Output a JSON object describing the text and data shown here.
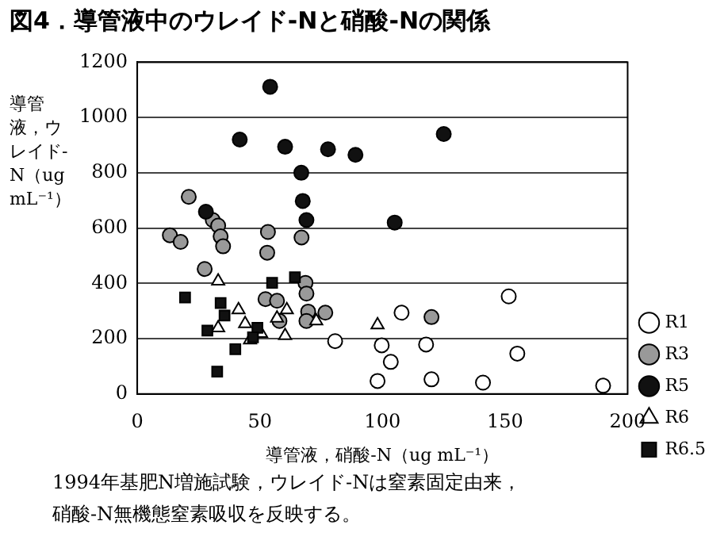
{
  "chart_data": {
    "type": "scatter",
    "title": "図4．導管液中のウレイド-Nと硝酸-Nの関係",
    "xlabel": "導管液，硝酸-N（ug mL⁻¹）",
    "ylabel": "導管液，ウレイド-N（ug mL⁻¹）",
    "annotations": [
      "1994年基肥N増施試験，ウレイド-Nは窒素固定由来，",
      "硝酸-N無機態窒素吸収を反映する。"
    ],
    "xlim": [
      0,
      200
    ],
    "xticks": [
      0,
      50,
      100,
      150,
      200
    ],
    "ylim": [
      0,
      1200
    ],
    "yticks": [
      0,
      200,
      400,
      600,
      800,
      1000,
      1200
    ],
    "grid": "y",
    "legend": "right",
    "series": [
      {
        "name": "R1",
        "color": "#ffffff",
        "marker": "circle",
        "x": [
          80.7,
          107.8,
          151.5,
          99.7,
          117.8,
          103.4,
          155,
          98,
          120,
          141,
          190
        ],
        "values": [
          191,
          294,
          353,
          176,
          179,
          116,
          146,
          47,
          53,
          41,
          30
        ]
      },
      {
        "name": "R3",
        "color": "#999999",
        "marker": "circle",
        "x": [
          21,
          30.8,
          33,
          13.3,
          17.7,
          34,
          35,
          53.3,
          67,
          53,
          27.5,
          68.6,
          69,
          52.3,
          57,
          58,
          69.7,
          76.7,
          69,
          120
        ],
        "values": [
          713,
          629,
          609,
          574,
          550,
          570,
          534,
          586,
          566,
          511,
          452,
          402,
          363,
          343,
          337,
          264,
          298,
          294,
          264,
          278
        ]
      },
      {
        "name": "R5",
        "color": "#111111",
        "marker": "circle",
        "x": [
          54.2,
          41.8,
          60.3,
          77.8,
          89,
          125,
          105,
          66.9,
          67.5,
          69,
          28
        ],
        "values": [
          1111,
          920,
          894,
          885,
          865,
          940,
          620,
          800,
          698,
          629,
          659
        ]
      },
      {
        "name": "R6",
        "color": "#ffffff",
        "marker": "triangle",
        "x": [
          33,
          41.3,
          33,
          44,
          50.5,
          46,
          61,
          57,
          73,
          60.3,
          98
        ],
        "values": [
          408,
          304,
          239,
          254,
          219,
          195,
          304,
          274,
          264,
          211,
          250
        ]
      },
      {
        "name": "R6.5",
        "color": "#111111",
        "marker": "square",
        "x": [
          19.5,
          34,
          35.6,
          28.6,
          55,
          64.3,
          49,
          47.2,
          40,
          32.6
        ],
        "values": [
          349,
          329,
          284,
          229,
          402,
          422,
          239,
          205,
          162,
          81
        ]
      }
    ]
  }
}
